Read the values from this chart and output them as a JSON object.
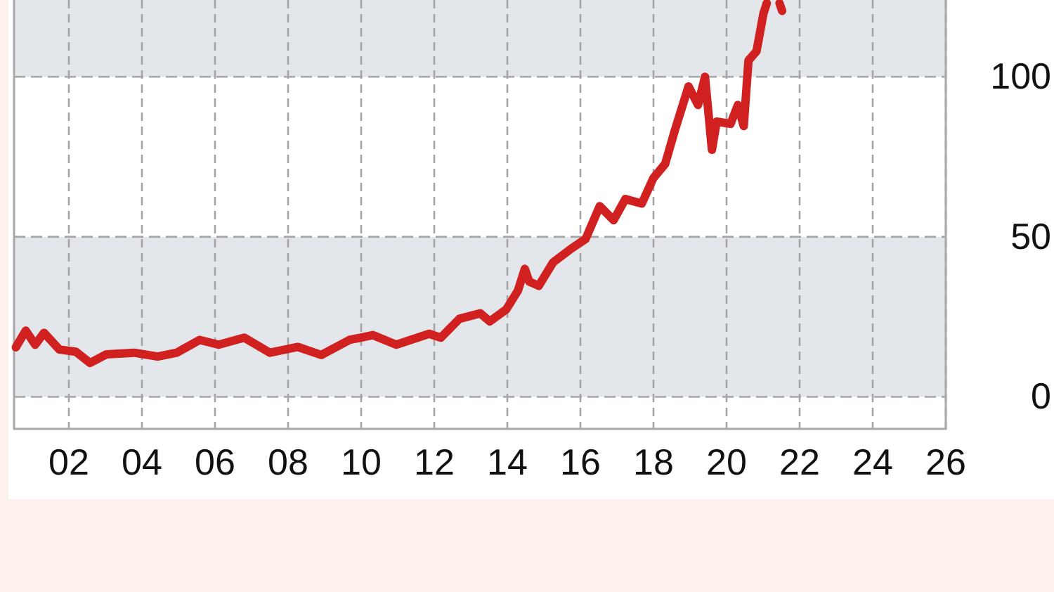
{
  "chart_data": {
    "type": "line",
    "x": [
      2000.55,
      2000.82,
      2001.08,
      2001.32,
      2001.74,
      2002.19,
      2002.58,
      2003.03,
      2003.79,
      2004.43,
      2004.95,
      2005.58,
      2006.1,
      2006.8,
      2007.5,
      2008.27,
      2008.91,
      2009.68,
      2010.32,
      2010.96,
      2011.86,
      2012.18,
      2012.69,
      2013.26,
      2013.52,
      2013.97,
      2014.29,
      2014.48,
      2014.6,
      2014.86,
      2015.25,
      2015.76,
      2016.14,
      2016.53,
      2016.91,
      2017.23,
      2017.68,
      2018.0,
      2018.32,
      2018.58,
      2018.96,
      2019.22,
      2019.41,
      2019.6,
      2019.73,
      2020.11,
      2020.31,
      2020.47,
      2020.6,
      2020.82,
      2021.01,
      2021.1,
      2021.3,
      2021.45,
      2021.52
    ],
    "series": [
      {
        "color": "#d0201f",
        "values": [
          15.5,
          20.7,
          16.3,
          20,
          14.8,
          14.1,
          10.6,
          13.3,
          13.8,
          12.6,
          13.8,
          17.8,
          16.3,
          18.5,
          13.8,
          15.6,
          13.1,
          17.8,
          19.3,
          16.3,
          19.7,
          18.5,
          24.4,
          26.1,
          23.6,
          27.3,
          33.2,
          40,
          36,
          34.7,
          42,
          46.4,
          49.3,
          59.6,
          55.2,
          61.8,
          60.4,
          68.4,
          72.8,
          83.1,
          97,
          91.2,
          100,
          77.2,
          86,
          85.3,
          91.2,
          84.6,
          105.1,
          108,
          119.8,
          123,
          null,
          123,
          120.6
        ]
      }
    ],
    "xlim": [
      2000.5,
      2026
    ],
    "xticks": [
      {
        "value": 2002,
        "label": "02"
      },
      {
        "value": 2004,
        "label": "04"
      },
      {
        "value": 2006,
        "label": "06"
      },
      {
        "value": 2008,
        "label": "08"
      },
      {
        "value": 2010,
        "label": "10"
      },
      {
        "value": 2012,
        "label": "12"
      },
      {
        "value": 2014,
        "label": "14"
      },
      {
        "value": 2016,
        "label": "16"
      },
      {
        "value": 2018,
        "label": "18"
      },
      {
        "value": 2020,
        "label": "20"
      },
      {
        "value": 2022,
        "label": "22"
      },
      {
        "value": 2024,
        "label": "24"
      },
      {
        "value": 2026,
        "label": "26"
      }
    ],
    "ylim": [
      -10,
      124
    ],
    "yticks": [
      0,
      50,
      100
    ],
    "grid": true,
    "line_style": "solid",
    "bands": [
      {
        "axis": "y",
        "from": 0,
        "to": 50,
        "color": "#e3e6ea"
      },
      {
        "axis": "y",
        "from": 100,
        "to": 124,
        "color": "#e3e6ea"
      }
    ]
  }
}
